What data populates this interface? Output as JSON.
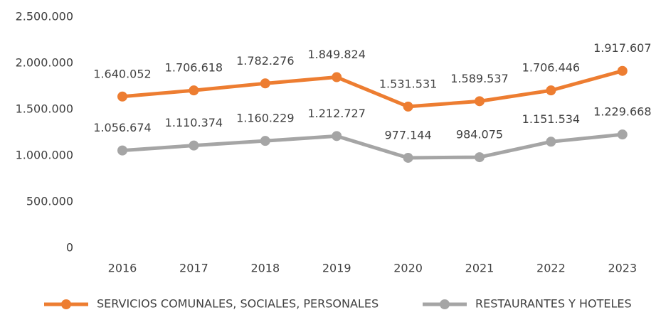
{
  "chart_data": {
    "type": "line",
    "categories": [
      "2016",
      "2017",
      "2018",
      "2019",
      "2020",
      "2021",
      "2022",
      "2023"
    ],
    "series": [
      {
        "name": "SERVICIOS COMUNALES, SOCIALES, PERSONALES",
        "color": "#ed7d31",
        "values": [
          1640052,
          1706618,
          1782276,
          1849824,
          1531531,
          1589537,
          1706446,
          1917607
        ],
        "value_labels": [
          "1.640.052",
          "1.706.618",
          "1.782.276",
          "1.849.824",
          "1.531.531",
          "1.589.537",
          "1.706.446",
          "1.917.607"
        ]
      },
      {
        "name": "RESTAURANTES Y HOTELES",
        "color": "#a5a5a5",
        "values": [
          1056674,
          1110374,
          1160229,
          1212727,
          977144,
          984075,
          1151534,
          1229668
        ],
        "value_labels": [
          "1.056.674",
          "1.110.374",
          "1.160.229",
          "1.212.727",
          "977.144",
          "984.075",
          "1.151.534",
          "1.229.668"
        ]
      }
    ],
    "ylim": [
      0,
      2500000
    ],
    "yticks": [
      0,
      {
        "value": 500000,
        "label": "500.000"
      },
      {
        "value": 1000000,
        "label": "1.000.000"
      },
      {
        "value": 1500000,
        "label": "1.500.000"
      },
      {
        "value": 2000000,
        "label": "2.000.000"
      },
      {
        "value": 2500000,
        "label": "2.500.000"
      }
    ],
    "grid": false,
    "legend": "bottom"
  }
}
